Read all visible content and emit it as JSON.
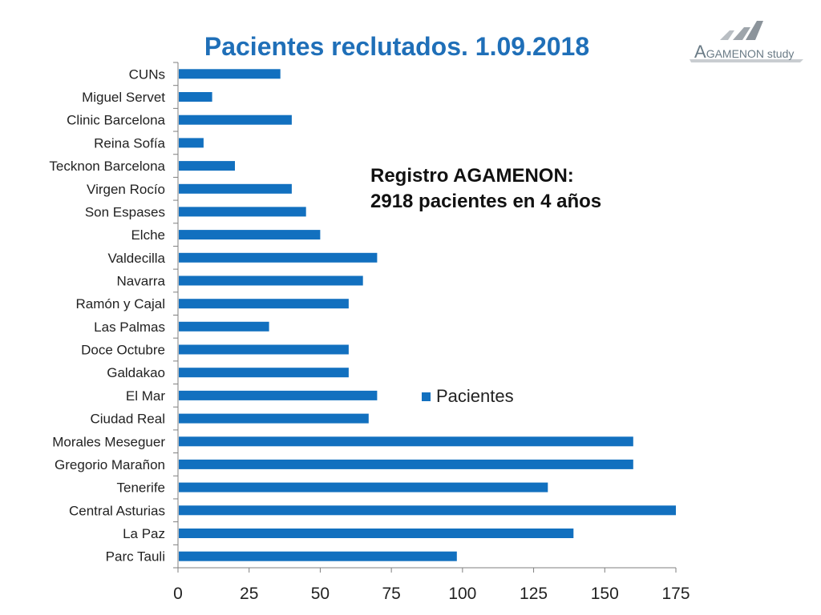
{
  "title": "Pacientes reclutados. 1.09.2018",
  "logo": {
    "text_big": "A",
    "text_rest": "GAMENON study"
  },
  "annotation": {
    "line1": "Registro AGAMENON:",
    "line2": "2918 pacientes en 4 años"
  },
  "colors": {
    "bar": "#1270bf",
    "title": "#1f6fb8",
    "axis": "#7f7f7f"
  },
  "chart_data": {
    "type": "bar",
    "orientation": "horizontal",
    "categories": [
      "CUNs",
      "Miguel Servet",
      "Clinic Barcelona",
      "Reina Sofía",
      "Tecknon Barcelona",
      "Virgen Rocío",
      "Son Espases",
      "Elche",
      "Valdecilla",
      "Navarra",
      "Ramón y Cajal",
      "Las Palmas",
      "Doce Octubre",
      "Galdakao",
      "El Mar",
      "Ciudad Real",
      "Morales Meseguer",
      "Gregorio Marañon",
      "Tenerife",
      "Central Asturias",
      "La Paz",
      "Parc Tauli"
    ],
    "series": [
      {
        "name": "Pacientes",
        "values": [
          36,
          12,
          40,
          9,
          20,
          40,
          45,
          50,
          70,
          65,
          60,
          32,
          60,
          60,
          70,
          67,
          160,
          160,
          130,
          175,
          139,
          98
        ]
      }
    ],
    "xlim": [
      0,
      175
    ],
    "xticks": [
      "0",
      "25",
      "50",
      "75",
      "100",
      "125",
      "150",
      "175"
    ],
    "legend": "right-middle",
    "grid": false
  }
}
